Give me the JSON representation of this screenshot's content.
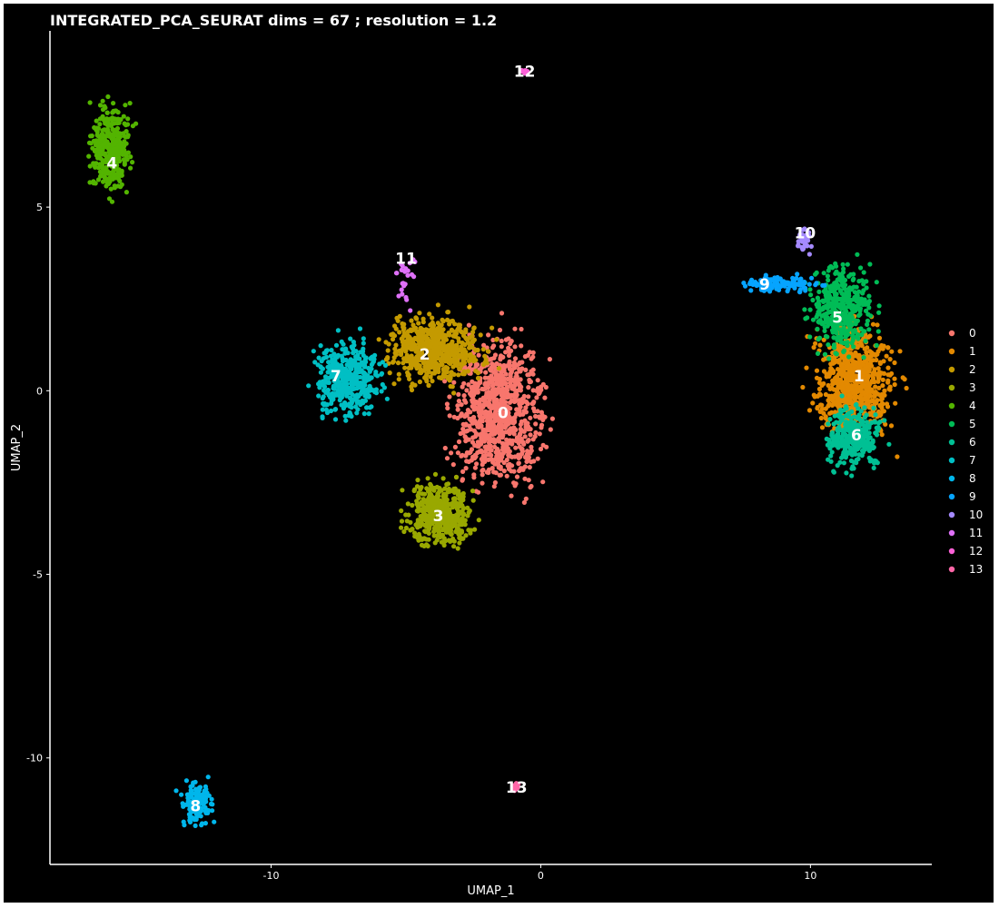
{
  "chart_data": {
    "type": "scatter",
    "title": "INTEGRATED_PCA_SEURAT dims =  67 ; resolution = 1.2",
    "xlabel": "UMAP_1",
    "ylabel": "UMAP_2",
    "xlim": [
      -18.2,
      14.5
    ],
    "ylim": [
      -12.9,
      9.8
    ],
    "x_ticks": [
      -10,
      0,
      10
    ],
    "x_tick_labels": [
      "-10",
      "0",
      "10"
    ],
    "y_ticks": [
      5,
      0,
      -5,
      -10
    ],
    "y_tick_labels": [
      "5",
      "0",
      "-5",
      "-10"
    ],
    "background": "#000000",
    "legend_position": "right",
    "clusters": [
      {
        "name": "0",
        "color": "#F8766D",
        "label_pos": [
          -1.4,
          -0.6
        ],
        "shape": [
          {
            "x": [
              -3.2,
              0.1
            ],
            "y": [
              -2.6,
              1.4
            ]
          }
        ],
        "n": 900
      },
      {
        "name": "1",
        "color": "#E38900",
        "label_pos": [
          11.8,
          0.4
        ],
        "shape": [
          {
            "x": [
              10.1,
              13.1
            ],
            "y": [
              -1.2,
              1.8
            ]
          }
        ],
        "n": 700
      },
      {
        "name": "2",
        "color": "#C49A00",
        "label_pos": [
          -4.3,
          1.0
        ],
        "shape": [
          {
            "x": [
              -5.6,
              -2.2
            ],
            "y": [
              0.2,
              2.1
            ]
          }
        ],
        "n": 600
      },
      {
        "name": "3",
        "color": "#99A800",
        "label_pos": [
          -3.8,
          -3.4
        ],
        "shape": [
          {
            "x": [
              -4.9,
              -2.6
            ],
            "y": [
              -4.2,
              -2.5
            ]
          }
        ],
        "n": 450
      },
      {
        "name": "4",
        "color": "#53B400",
        "label_pos": [
          -15.9,
          6.2
        ],
        "shape": [
          {
            "x": [
              -16.7,
              -15.2
            ],
            "y": [
              5.4,
              7.8
            ]
          }
        ],
        "n": 350
      },
      {
        "name": "5",
        "color": "#00BC56",
        "label_pos": [
          11.0,
          2.0
        ],
        "shape": [
          {
            "x": [
              10.0,
              12.4
            ],
            "y": [
              1.0,
              3.5
            ]
          }
        ],
        "n": 400
      },
      {
        "name": "6",
        "color": "#00C094",
        "label_pos": [
          11.7,
          -1.2
        ],
        "shape": [
          {
            "x": [
              10.6,
              12.6
            ],
            "y": [
              -2.1,
              -0.4
            ]
          }
        ],
        "n": 300
      },
      {
        "name": "7",
        "color": "#00BFC4",
        "label_pos": [
          -7.6,
          0.4
        ],
        "shape": [
          {
            "x": [
              -8.4,
              -5.8
            ],
            "y": [
              -0.8,
              1.4
            ]
          }
        ],
        "n": 400
      },
      {
        "name": "8",
        "color": "#00B6EB",
        "label_pos": [
          -12.8,
          -11.3
        ],
        "shape": [
          {
            "x": [
              -13.3,
              -12.2
            ],
            "y": [
              -11.8,
              -10.7
            ]
          }
        ],
        "n": 150
      },
      {
        "name": "9",
        "color": "#06A4FF",
        "label_pos": [
          8.3,
          2.9
        ],
        "shape": [
          {
            "x": [
              7.6,
              10.2
            ],
            "y": [
              2.7,
              3.1
            ]
          }
        ],
        "n": 120
      },
      {
        "name": "10",
        "color": "#A58AFF",
        "label_pos": [
          9.8,
          4.3
        ],
        "shape": [
          {
            "x": [
              9.5,
              10.1
            ],
            "y": [
              3.8,
              4.5
            ]
          }
        ],
        "n": 40
      },
      {
        "name": "11",
        "color": "#DF70F8",
        "label_pos": [
          -5.0,
          3.6
        ],
        "shape": [
          {
            "x": [
              -5.5,
              -4.5
            ],
            "y": [
              2.1,
              3.8
            ]
          }
        ],
        "n": 25
      },
      {
        "name": "12",
        "color": "#FB61D7",
        "label_pos": [
          -0.6,
          8.7
        ],
        "shape": [
          {
            "x": [
              -0.8,
              -0.4
            ],
            "y": [
              8.6,
              8.8
            ]
          }
        ],
        "n": 12
      },
      {
        "name": "13",
        "color": "#FF66A8",
        "label_pos": [
          -0.9,
          -10.8
        ],
        "shape": [
          {
            "x": [
              -1.1,
              -0.7
            ],
            "y": [
              -10.9,
              -10.7
            ]
          }
        ],
        "n": 12
      }
    ]
  }
}
